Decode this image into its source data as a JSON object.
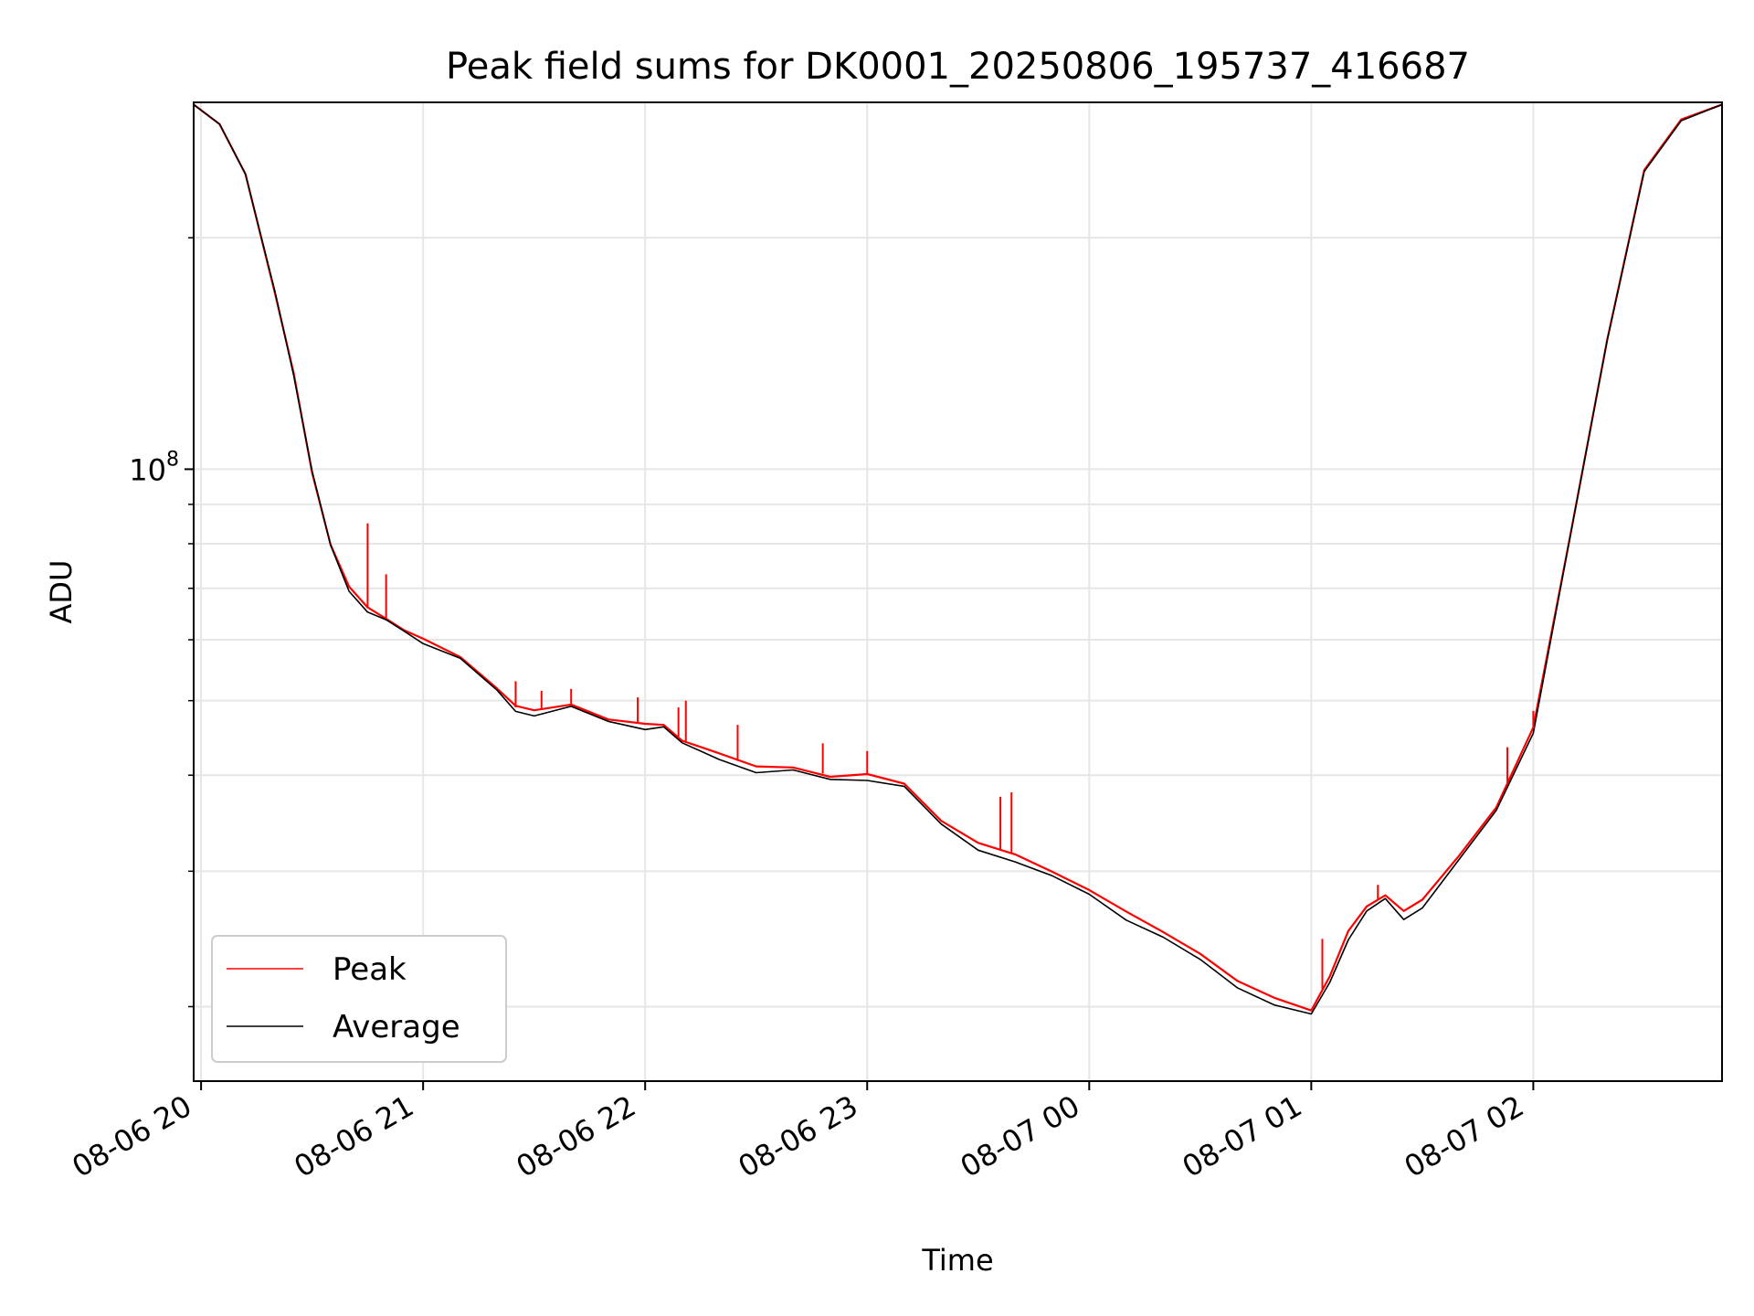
{
  "chart_data": {
    "type": "line",
    "title": "Peak field sums for DK0001_20250806_195737_416687",
    "xlabel": "Time",
    "ylabel": "ADU",
    "y_scale": "log",
    "x_range": [
      "08-06 19:58",
      "08-07 02:51"
    ],
    "y_range": [
      16000000.0,
      300000000.0
    ],
    "x_ticks": [
      "08-06 20",
      "08-06 21",
      "08-06 22",
      "08-06 23",
      "08-07 00",
      "08-07 01",
      "08-07 02"
    ],
    "y_major_ticks": [
      {
        "label_base": "10",
        "label_exp": "8",
        "value": 100000000
      }
    ],
    "y_minor_ticks": [
      20000000,
      30000000,
      40000000,
      50000000,
      60000000,
      70000000,
      80000000,
      90000000,
      200000000
    ],
    "grid": true,
    "legend_position": "lower-left",
    "series": [
      {
        "name": "Peak",
        "color": "#ff0000",
        "x": [
          "08-06 19:58",
          "08-06 20:05",
          "08-06 20:12",
          "08-06 20:20",
          "08-06 20:25",
          "08-06 20:30",
          "08-06 20:35",
          "08-06 20:40",
          "08-06 20:45",
          "08-06 20:50",
          "08-06 20:55",
          "08-06 21:00",
          "08-06 21:10",
          "08-06 21:20",
          "08-06 21:25",
          "08-06 21:30",
          "08-06 21:40",
          "08-06 21:50",
          "08-06 22:00",
          "08-06 22:05",
          "08-06 22:10",
          "08-06 22:20",
          "08-06 22:30",
          "08-06 22:40",
          "08-06 22:50",
          "08-06 23:00",
          "08-06 23:10",
          "08-06 23:20",
          "08-06 23:30",
          "08-06 23:40",
          "08-06 23:50",
          "08-07 00:00",
          "08-07 00:10",
          "08-07 00:20",
          "08-07 00:30",
          "08-07 00:40",
          "08-07 00:50",
          "08-07 01:00",
          "08-07 01:05",
          "08-07 01:10",
          "08-07 01:15",
          "08-07 01:20",
          "08-07 01:25",
          "08-07 01:30",
          "08-07 01:40",
          "08-07 01:50",
          "08-07 02:00",
          "08-07 02:10",
          "08-07 02:20",
          "08-07 02:30",
          "08-07 02:40",
          "08-07 02:51"
        ],
        "y": [
          298000000,
          281000000,
          242000000,
          170000000,
          133000000,
          99000000,
          80000000,
          70000000,
          66000000,
          64000000,
          62000000,
          60000000,
          57000000,
          52000000,
          49000000,
          48500000,
          49500000,
          47500000,
          46500000,
          46500000,
          44500000,
          42500000,
          41000000,
          41000000,
          40000000,
          40000000,
          39000000,
          35000000,
          32500000,
          31500000,
          30000000,
          28500000,
          26500000,
          25000000,
          23500000,
          21500000,
          20500000,
          19800000,
          22000000,
          25000000,
          27000000,
          28000000,
          26500000,
          27500000,
          31500000,
          36500000,
          46000000,
          82000000,
          148000000,
          245000000,
          285000000,
          298000000
        ],
        "spikes": [
          {
            "x": "08-06 20:45",
            "y": 85000000
          },
          {
            "x": "08-06 20:50",
            "y": 73000000
          },
          {
            "x": "08-06 21:25",
            "y": 53000000
          },
          {
            "x": "08-06 21:32",
            "y": 51500000
          },
          {
            "x": "08-06 21:40",
            "y": 51800000
          },
          {
            "x": "08-06 21:58",
            "y": 50500000
          },
          {
            "x": "08-06 22:09",
            "y": 49000000
          },
          {
            "x": "08-06 22:11",
            "y": 50000000
          },
          {
            "x": "08-06 22:25",
            "y": 46500000
          },
          {
            "x": "08-06 22:48",
            "y": 44000000
          },
          {
            "x": "08-06 23:00",
            "y": 43000000
          },
          {
            "x": "08-06 23:36",
            "y": 37500000
          },
          {
            "x": "08-06 23:39",
            "y": 38000000
          },
          {
            "x": "08-07 01:03",
            "y": 24500000
          },
          {
            "x": "08-07 01:18",
            "y": 28800000
          },
          {
            "x": "08-07 01:53",
            "y": 43500000
          },
          {
            "x": "08-07 02:00",
            "y": 48500000
          }
        ]
      },
      {
        "name": "Average",
        "color": "#000000",
        "x": [
          "08-06 19:58",
          "08-06 20:05",
          "08-06 20:12",
          "08-06 20:20",
          "08-06 20:25",
          "08-06 20:30",
          "08-06 20:35",
          "08-06 20:40",
          "08-06 20:45",
          "08-06 20:50",
          "08-06 20:55",
          "08-06 21:00",
          "08-06 21:10",
          "08-06 21:20",
          "08-06 21:25",
          "08-06 21:30",
          "08-06 21:40",
          "08-06 21:50",
          "08-06 22:00",
          "08-06 22:05",
          "08-06 22:10",
          "08-06 22:20",
          "08-06 22:30",
          "08-06 22:40",
          "08-06 22:50",
          "08-06 23:00",
          "08-06 23:10",
          "08-06 23:20",
          "08-06 23:30",
          "08-06 23:40",
          "08-06 23:50",
          "08-07 00:00",
          "08-07 00:10",
          "08-07 00:20",
          "08-07 00:30",
          "08-07 00:40",
          "08-07 00:50",
          "08-07 01:00",
          "08-07 01:05",
          "08-07 01:10",
          "08-07 01:15",
          "08-07 01:20",
          "08-07 01:25",
          "08-07 01:30",
          "08-07 01:40",
          "08-07 01:50",
          "08-07 02:00",
          "08-07 02:10",
          "08-07 02:20",
          "08-07 02:30",
          "08-07 02:40",
          "08-07 02:51"
        ],
        "y": [
          298000000,
          281000000,
          242000000,
          170000000,
          133000000,
          99000000,
          79500000,
          69500000,
          65500000,
          63500000,
          61500000,
          59500000,
          56500000,
          51500000,
          48500000,
          48000000,
          49000000,
          47000000,
          46000000,
          46000000,
          44000000,
          42000000,
          40500000,
          40500000,
          39500000,
          39500000,
          38500000,
          34500000,
          32000000,
          31000000,
          29500000,
          28000000,
          26000000,
          24500000,
          23000000,
          21200000,
          20200000,
          19500000,
          21500000,
          24500000,
          26500000,
          27600000,
          26000000,
          27000000,
          31000000,
          36000000,
          45500000,
          81500000,
          147000000,
          244000000,
          284000000,
          298000000
        ]
      }
    ]
  }
}
